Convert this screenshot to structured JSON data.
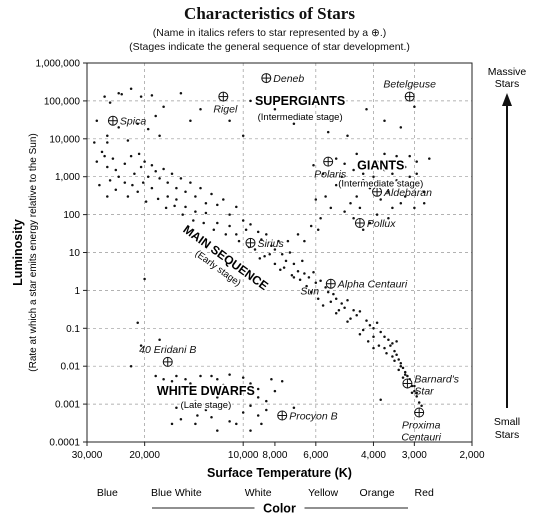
{
  "title": "Characteristics of Stars",
  "notes": [
    "(Name in italics refers to star represented by a ⊕.)",
    "(Stages indicate the general sequence of star development.)"
  ],
  "chart_data": {
    "type": "scatter",
    "title": "Characteristics of Stars",
    "xlabel": "Surface Temperature (K)",
    "ylabel": "Luminosity",
    "ylabel_sub": "(Rate at which a star emits energy relative to the Sun)",
    "x_scale": "log",
    "x_reversed": true,
    "xlim": [
      30000,
      2000
    ],
    "y_scale": "log",
    "ylim": [
      0.0001,
      1000000
    ],
    "grid": true,
    "x_ticks": [
      {
        "value": 30000,
        "label": "30,000"
      },
      {
        "value": 20000,
        "label": "20,000"
      },
      {
        "value": 10000,
        "label": "10,000"
      },
      {
        "value": 8000,
        "label": "8,000"
      },
      {
        "value": 6000,
        "label": "6,000"
      },
      {
        "value": 4000,
        "label": "4,000"
      },
      {
        "value": 3000,
        "label": "3,000"
      },
      {
        "value": 2000,
        "label": "2,000"
      }
    ],
    "x_gridlines": [
      20000,
      10000,
      6000,
      4000,
      3000
    ],
    "y_ticks": [
      {
        "value": 1000000,
        "label": "1,000,000"
      },
      {
        "value": 100000,
        "label": "100,000"
      },
      {
        "value": 10000,
        "label": "10,000"
      },
      {
        "value": 1000,
        "label": "1,000"
      },
      {
        "value": 100,
        "label": "100"
      },
      {
        "value": 10,
        "label": "10"
      },
      {
        "value": 1,
        "label": "1"
      },
      {
        "value": 0.1,
        "label": "0.1"
      },
      {
        "value": 0.01,
        "label": "0.01"
      },
      {
        "value": 0.001,
        "label": "0.001"
      },
      {
        "value": 0.0001,
        "label": "0.0001"
      }
    ],
    "color_axis": {
      "title": "Color",
      "labels": [
        {
          "label": "Blue",
          "temp": 26000
        },
        {
          "label": "Blue White",
          "temp": 16000
        },
        {
          "label": "White",
          "temp": 9000
        },
        {
          "label": "Yellow",
          "temp": 5700
        },
        {
          "label": "Orange",
          "temp": 3900
        },
        {
          "label": "Red",
          "temp": 2800
        }
      ]
    },
    "right_labels": {
      "top": [
        "Massive",
        "Stars"
      ],
      "bottom": [
        "Small",
        "Stars"
      ]
    },
    "groups": [
      {
        "name": "SUPERGIANTS",
        "subtitle": "(Intermediate stage)",
        "temp": 6700,
        "lum": 100000,
        "subtitle_lum": 40000
      },
      {
        "name": "GIANTS",
        "subtitle": "(Intermediate stage)",
        "temp": 3800,
        "lum": 2000,
        "subtitle_lum": 700
      },
      {
        "name": "WHITE DWARFS",
        "subtitle": "(Late stage)",
        "temp": 13000,
        "lum": 0.0022,
        "subtitle_lum": 0.001
      },
      {
        "name": "MAIN SEQUENCE",
        "subtitle": "(Early stage)",
        "temp": 11500,
        "lum": 6,
        "subtitle_lum": 0.7
      }
    ],
    "named_stars": [
      {
        "name": "Deneb",
        "temp": 8500,
        "lum": 400000,
        "label_pos": "right"
      },
      {
        "name": "Rigel",
        "temp": 11500,
        "lum": 130000,
        "label_pos": "below"
      },
      {
        "name": "Betelgeuse",
        "temp": 3100,
        "lum": 130000,
        "label_pos": "above"
      },
      {
        "name": "Spica",
        "temp": 25000,
        "lum": 30000,
        "label_pos": "right"
      },
      {
        "name": "Polaris",
        "temp": 5500,
        "lum": 2500,
        "label_pos": "below"
      },
      {
        "name": "Aldebaran",
        "temp": 3900,
        "lum": 400,
        "label_pos": "right"
      },
      {
        "name": "Pollux",
        "temp": 4400,
        "lum": 60,
        "label_pos": "right"
      },
      {
        "name": "Sirius",
        "temp": 9500,
        "lum": 18,
        "label_pos": "right"
      },
      {
        "name": "Alpha Centauri",
        "temp": 5400,
        "lum": 1.5,
        "label_pos": "right"
      },
      {
        "name": "Sun",
        "temp": 5700,
        "lum": 1,
        "label_pos": "left",
        "no_marker": true
      },
      {
        "name": "40 Eridani B",
        "temp": 17000,
        "lum": 0.013,
        "label_pos": "above"
      },
      {
        "name": "Procyon B",
        "temp": 7600,
        "lum": 0.0005,
        "label_pos": "right"
      },
      {
        "name": "Barnard's Star",
        "temp": 3150,
        "lum": 0.0035,
        "label_pos": "right",
        "label_lines": [
          "Barnard's",
          "Star"
        ]
      },
      {
        "name": "Proxima Centauri",
        "temp": 2900,
        "lum": 0.0006,
        "label_pos": "below",
        "label_lines": [
          "Proxima",
          "Centauri"
        ]
      }
    ],
    "stars": [
      [
        23500,
        150000
      ],
      [
        26500,
        130000
      ],
      [
        22000,
        210000
      ],
      [
        19000,
        140000
      ],
      [
        15500,
        160000
      ],
      [
        13500,
        60000
      ],
      [
        17500,
        70000
      ],
      [
        25500,
        90000
      ],
      [
        24000,
        160000
      ],
      [
        20500,
        130000
      ],
      [
        28000,
        30000
      ],
      [
        24000,
        20000
      ],
      [
        14500,
        30000
      ],
      [
        18500,
        40000
      ],
      [
        11000,
        30000
      ],
      [
        9000,
        35000
      ],
      [
        8000,
        60000
      ],
      [
        10000,
        12000
      ],
      [
        7000,
        25000
      ],
      [
        5500,
        15000
      ],
      [
        5000,
        35000
      ],
      [
        4200,
        60000
      ],
      [
        3700,
        30000
      ],
      [
        3300,
        20000
      ],
      [
        3000,
        70000
      ],
      [
        4800,
        12000
      ],
      [
        6200,
        40000
      ],
      [
        9500,
        100000
      ],
      [
        26000,
        12000
      ],
      [
        28500,
        8000
      ],
      [
        26000,
        8000
      ],
      [
        22500,
        9000
      ],
      [
        19500,
        18000
      ],
      [
        21000,
        25000
      ],
      [
        18000,
        12000
      ],
      [
        28000,
        2500
      ],
      [
        27000,
        4500
      ],
      [
        26000,
        1800
      ],
      [
        25000,
        3000
      ],
      [
        24500,
        1500
      ],
      [
        23000,
        2200
      ],
      [
        22000,
        3500
      ],
      [
        21500,
        1200
      ],
      [
        20800,
        4000
      ],
      [
        20500,
        1800
      ],
      [
        20000,
        2500
      ],
      [
        19500,
        1000
      ],
      [
        19000,
        2000
      ],
      [
        18500,
        1400
      ],
      [
        18000,
        900
      ],
      [
        17500,
        1600
      ],
      [
        17000,
        700
      ],
      [
        16500,
        1200
      ],
      [
        16000,
        500
      ],
      [
        15500,
        900
      ],
      [
        15000,
        400
      ],
      [
        14500,
        700
      ],
      [
        14000,
        300
      ],
      [
        13500,
        500
      ],
      [
        13000,
        200
      ],
      [
        12500,
        350
      ],
      [
        12000,
        180
      ],
      [
        11500,
        250
      ],
      [
        11000,
        100
      ],
      [
        10500,
        160
      ],
      [
        10000,
        70
      ],
      [
        9800,
        40
      ],
      [
        9500,
        55
      ],
      [
        9000,
        35
      ],
      [
        8800,
        22
      ],
      [
        8500,
        30
      ],
      [
        8200,
        15
      ],
      [
        8000,
        12
      ],
      [
        7800,
        20
      ],
      [
        7600,
        9
      ],
      [
        7400,
        6
      ],
      [
        7200,
        10
      ],
      [
        7000,
        5
      ],
      [
        6800,
        3.2
      ],
      [
        6600,
        6
      ],
      [
        6500,
        2.8
      ],
      [
        6300,
        2.2
      ],
      [
        6100,
        3
      ],
      [
        6000,
        1.6
      ],
      [
        5800,
        1.8
      ],
      [
        5600,
        1.2
      ],
      [
        5500,
        0.9
      ],
      [
        5300,
        0.8
      ],
      [
        5200,
        0.6
      ],
      [
        5000,
        0.45
      ],
      [
        4900,
        0.35
      ],
      [
        4800,
        0.55
      ],
      [
        4600,
        0.3
      ],
      [
        4500,
        0.22
      ],
      [
        4400,
        0.28
      ],
      [
        4200,
        0.16
      ],
      [
        4100,
        0.12
      ],
      [
        4000,
        0.1
      ],
      [
        3900,
        0.14
      ],
      [
        3800,
        0.08
      ],
      [
        3700,
        0.06
      ],
      [
        3600,
        0.05
      ],
      [
        3550,
        0.035
      ],
      [
        3500,
        0.04
      ],
      [
        3450,
        0.025
      ],
      [
        3400,
        0.02
      ],
      [
        3350,
        0.015
      ],
      [
        3300,
        0.012
      ],
      [
        3250,
        0.009
      ],
      [
        3200,
        0.007
      ],
      [
        3150,
        0.0055
      ],
      [
        3100,
        0.004
      ],
      [
        3050,
        0.003
      ],
      [
        3000,
        0.0022
      ],
      [
        2950,
        0.0016
      ],
      [
        2900,
        0.0011
      ],
      [
        2850,
        0.0009
      ],
      [
        27500,
        600
      ],
      [
        26500,
        3500
      ],
      [
        25500,
        800
      ],
      [
        24000,
        1000
      ],
      [
        23000,
        700
      ],
      [
        21800,
        600
      ],
      [
        20200,
        700
      ],
      [
        19000,
        500
      ],
      [
        17000,
        300
      ],
      [
        16000,
        250
      ],
      [
        15000,
        160
      ],
      [
        14000,
        120
      ],
      [
        13000,
        110
      ],
      [
        12000,
        60
      ],
      [
        11000,
        50
      ],
      [
        10500,
        30
      ],
      [
        9200,
        12
      ],
      [
        8600,
        8
      ],
      [
        8000,
        5
      ],
      [
        7500,
        4
      ],
      [
        7000,
        2.2
      ],
      [
        6400,
        1.3
      ],
      [
        5900,
        0.6
      ],
      [
        5400,
        0.5
      ],
      [
        5100,
        0.3
      ],
      [
        4700,
        0.18
      ],
      [
        4300,
        0.09
      ],
      [
        4000,
        0.06
      ],
      [
        3700,
        0.03
      ],
      [
        3500,
        0.018
      ],
      [
        3350,
        0.008
      ],
      [
        3250,
        0.005
      ],
      [
        3150,
        0.0028
      ],
      [
        3050,
        0.002
      ],
      [
        26000,
        300
      ],
      [
        24500,
        450
      ],
      [
        22500,
        300
      ],
      [
        21000,
        400
      ],
      [
        19800,
        220
      ],
      [
        18200,
        260
      ],
      [
        17200,
        150
      ],
      [
        16200,
        170
      ],
      [
        15300,
        100
      ],
      [
        14200,
        70
      ],
      [
        13200,
        60
      ],
      [
        12300,
        40
      ],
      [
        11300,
        30
      ],
      [
        10300,
        20
      ],
      [
        9600,
        14
      ],
      [
        8900,
        7
      ],
      [
        8300,
        9
      ],
      [
        7700,
        3.5
      ],
      [
        7100,
        2.5
      ],
      [
        6700,
        1.9
      ],
      [
        6200,
        0.9
      ],
      [
        5700,
        0.4
      ],
      [
        5200,
        0.25
      ],
      [
        4800,
        0.15
      ],
      [
        4400,
        0.07
      ],
      [
        4150,
        0.045
      ],
      [
        3850,
        0.035
      ],
      [
        3650,
        0.022
      ],
      [
        3450,
        0.014
      ],
      [
        3300,
        0.01
      ],
      [
        3200,
        0.006
      ],
      [
        3100,
        0.0045
      ],
      [
        3000,
        0.003
      ],
      [
        2950,
        0.002
      ],
      [
        5600,
        300
      ],
      [
        5200,
        600
      ],
      [
        5000,
        1000
      ],
      [
        4800,
        700
      ],
      [
        4600,
        1500
      ],
      [
        4500,
        300
      ],
      [
        4300,
        800
      ],
      [
        4200,
        2000
      ],
      [
        4100,
        500
      ],
      [
        4000,
        1000
      ],
      [
        3900,
        2500
      ],
      [
        3800,
        700
      ],
      [
        3700,
        1500
      ],
      [
        3600,
        400
      ],
      [
        3500,
        1200
      ],
      [
        3400,
        800
      ],
      [
        3300,
        600
      ],
      [
        3200,
        1800
      ],
      [
        3100,
        1000
      ],
      [
        3000,
        500
      ],
      [
        2950,
        2500
      ],
      [
        2900,
        800
      ],
      [
        2800,
        400
      ],
      [
        2700,
        3000
      ],
      [
        4700,
        200
      ],
      [
        4400,
        150
      ],
      [
        3800,
        250
      ],
      [
        3500,
        150
      ],
      [
        3200,
        300
      ],
      [
        3000,
        150
      ],
      [
        2800,
        200
      ],
      [
        4900,
        120
      ],
      [
        4600,
        80
      ],
      [
        4300,
        40
      ],
      [
        4100,
        60
      ],
      [
        3900,
        100
      ],
      [
        3600,
        80
      ],
      [
        3300,
        200
      ],
      [
        5400,
        150
      ],
      [
        5800,
        80
      ],
      [
        6200,
        50
      ],
      [
        6800,
        30
      ],
      [
        7300,
        20
      ],
      [
        6500,
        20
      ],
      [
        5900,
        40
      ],
      [
        6000,
        250
      ],
      [
        5700,
        1200
      ],
      [
        5200,
        3000
      ],
      [
        4900,
        2200
      ],
      [
        4500,
        4000
      ],
      [
        4300,
        1200
      ],
      [
        3700,
        4000
      ],
      [
        3400,
        3500
      ],
      [
        3100,
        3500
      ],
      [
        2950,
        1200
      ],
      [
        6100,
        2000
      ],
      [
        16000,
        0.0055
      ],
      [
        15000,
        0.0045
      ],
      [
        13500,
        0.0055
      ],
      [
        12000,
        0.0045
      ],
      [
        11000,
        0.006
      ],
      [
        10000,
        0.005
      ],
      [
        9500,
        0.0035
      ],
      [
        14500,
        0.0035
      ],
      [
        16500,
        0.004
      ],
      [
        17000,
        0.003
      ],
      [
        13000,
        0.003
      ],
      [
        12500,
        0.0055
      ],
      [
        11500,
        0.0032
      ],
      [
        9000,
        0.0025
      ],
      [
        8000,
        0.0022
      ],
      [
        15500,
        0.002
      ],
      [
        10500,
        0.0018
      ],
      [
        12000,
        0.0015
      ],
      [
        14000,
        0.0012
      ],
      [
        11000,
        0.001
      ],
      [
        9500,
        0.0009
      ],
      [
        8500,
        0.0012
      ],
      [
        16000,
        0.0008
      ],
      [
        13000,
        0.0007
      ],
      [
        10000,
        0.0006
      ],
      [
        9000,
        0.0005
      ],
      [
        8500,
        0.0007
      ],
      [
        15500,
        0.0004
      ],
      [
        14000,
        0.0003
      ],
      [
        12500,
        0.00045
      ],
      [
        11000,
        0.00035
      ],
      [
        10500,
        0.0003
      ],
      [
        9500,
        0.0002
      ],
      [
        8800,
        0.0003
      ],
      [
        12000,
        0.0002
      ],
      [
        16500,
        0.0003
      ],
      [
        13800,
        0.0005
      ],
      [
        17500,
        0.0045
      ],
      [
        8200,
        0.0045
      ],
      [
        7600,
        0.004
      ],
      [
        18500,
        0.0055
      ],
      [
        20000,
        2
      ],
      [
        21000,
        0.14
      ],
      [
        20500,
        0.035
      ],
      [
        18000,
        0.05
      ],
      [
        22000,
        0.01
      ],
      [
        3800,
        0.0013
      ],
      [
        4000,
        0.03
      ],
      [
        3400,
        0.045
      ],
      [
        9000,
        0.0015
      ],
      [
        7000,
        0.0008
      ]
    ]
  }
}
